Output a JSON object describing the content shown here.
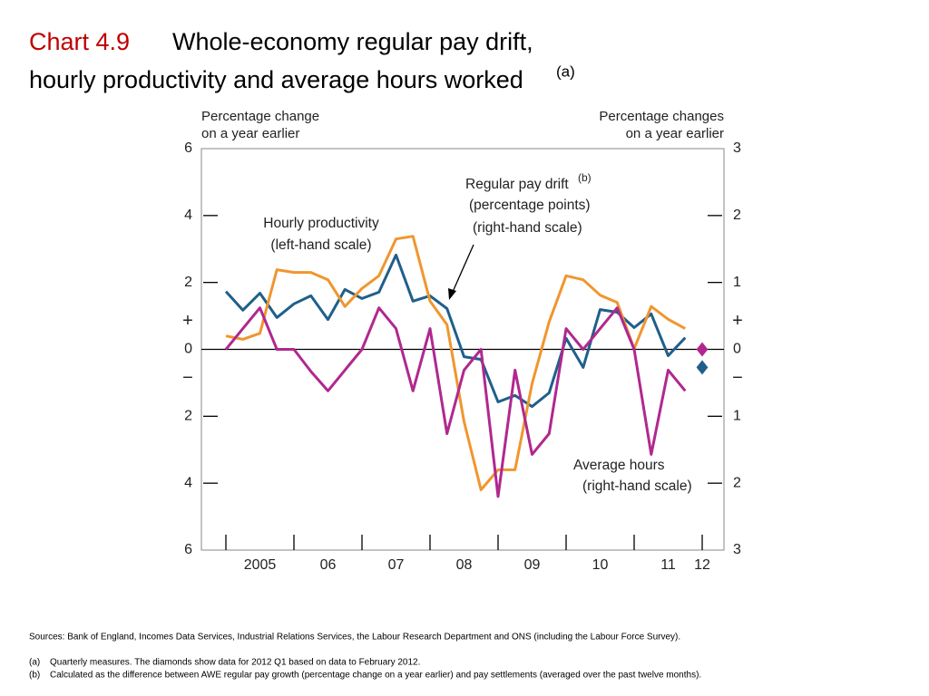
{
  "chart_data": {
    "type": "line",
    "title_prefix": "Chart 4.9",
    "title": "Whole-economy regular pay drift, hourly productivity and average hours worked",
    "title_superscript": "(a)",
    "y_axis_label": [
      "Percentage change",
      "on a year earlier"
    ],
    "y2_axis_label": [
      "Percentage changes",
      "on a year earlier"
    ],
    "sign_labels": [
      "+",
      "−"
    ],
    "x": [
      2005,
      2005.25,
      2005.5,
      2005.75,
      2006,
      2006.25,
      2006.5,
      2006.75,
      2007,
      2007.25,
      2007.5,
      2007.75,
      2008,
      2008.25,
      2008.5,
      2008.75,
      2009,
      2009.25,
      2009.5,
      2009.75,
      2010,
      2010.25,
      2010.5,
      2010.75,
      2011,
      2011.25,
      2011.5,
      2011.75
    ],
    "xlim": [
      2004.64,
      2012.32
    ],
    "xticks": [
      2005,
      2006,
      2007,
      2008,
      2009,
      2010,
      2011,
      2012
    ],
    "xtick_labels": [
      {
        "value": 2005.5,
        "label": "2005"
      },
      {
        "value": 2006.5,
        "label": "06"
      },
      {
        "value": 2007.5,
        "label": "07"
      },
      {
        "value": 2008.5,
        "label": "08"
      },
      {
        "value": 2009.5,
        "label": "09"
      },
      {
        "value": 2010.5,
        "label": "10"
      },
      {
        "value": 2011.5,
        "label": "11"
      },
      {
        "value": 2012,
        "label": "12"
      }
    ],
    "ylim": [
      -6,
      6
    ],
    "yticks": [
      {
        "value": -6,
        "label": "6"
      },
      {
        "value": -4,
        "label": "4"
      },
      {
        "value": -2,
        "label": "2"
      },
      0,
      2,
      4,
      6
    ],
    "y2lim": [
      -3,
      3
    ],
    "y2ticks": [
      {
        "value": -3,
        "label": "3"
      },
      {
        "value": -2,
        "label": "2"
      },
      {
        "value": -1,
        "label": "1"
      },
      0,
      1,
      2,
      3
    ],
    "series": [
      {
        "name": "Hourly productivity",
        "color": "#1f5f8b",
        "axis": "y",
        "values": [
          1.73,
          1.17,
          1.68,
          0.95,
          1.36,
          1.6,
          0.89,
          1.79,
          1.52,
          1.71,
          2.82,
          1.44,
          1.6,
          1.22,
          -0.22,
          -0.3,
          -1.57,
          -1.38,
          -1.71,
          -1.3,
          0.33,
          -0.54,
          1.19,
          1.11,
          0.65,
          1.06,
          -0.19,
          0.35
        ]
      },
      {
        "name": "Regular pay drift",
        "color": "#f0962e",
        "axis": "y2",
        "values": [
          0.2,
          0.15,
          0.24,
          1.19,
          1.15,
          1.15,
          1.04,
          0.64,
          0.91,
          1.1,
          1.65,
          1.69,
          0.72,
          0.37,
          -1.08,
          -2.1,
          -1.8,
          -1.8,
          -0.51,
          0.41,
          1.1,
          1.04,
          0.81,
          0.7,
          0.01,
          0.64,
          0.45,
          0.31
        ]
      },
      {
        "name": "Average hours",
        "color": "#b0288f",
        "axis": "y2",
        "values": [
          0,
          0.31,
          0.62,
          0,
          0,
          -0.33,
          -0.62,
          -0.31,
          0,
          0.62,
          0.31,
          -0.62,
          0.31,
          -1.26,
          -0.31,
          0,
          -2.2,
          -0.31,
          -1.57,
          -1.26,
          0.31,
          0,
          0.31,
          0.62,
          0,
          -1.57,
          -0.31,
          -0.62
        ]
      }
    ],
    "diamonds": [
      {
        "x": 2012,
        "value": 0,
        "color": "#b0288f",
        "axis": "y2"
      },
      {
        "x": 2012,
        "value": -0.54,
        "color": "#1f5f8b",
        "axis": "y"
      }
    ],
    "annotations": {
      "productivity": [
        "Hourly productivity",
        "(left-hand scale)"
      ],
      "pay_drift": [
        "Regular pay drift",
        "(b)",
        "(percentage points)",
        "(right-hand scale)"
      ],
      "hours": [
        "Average hours",
        "(right-hand scale)"
      ]
    },
    "sources": "Sources:  Bank of England, Incomes Data Services, Industrial Relations Services, the Labour Research Department and ONS (including the Labour Force Survey).",
    "footnotes": [
      {
        "marker": "(a)",
        "text": "Quarterly measures.  The diamonds show data for 2012 Q1 based on data to February 2012."
      },
      {
        "marker": "(b)",
        "text": "Calculated as the difference between AWE regular pay growth (percentage change on a year earlier) and pay settlements (averaged over the past twelve months)."
      }
    ]
  }
}
